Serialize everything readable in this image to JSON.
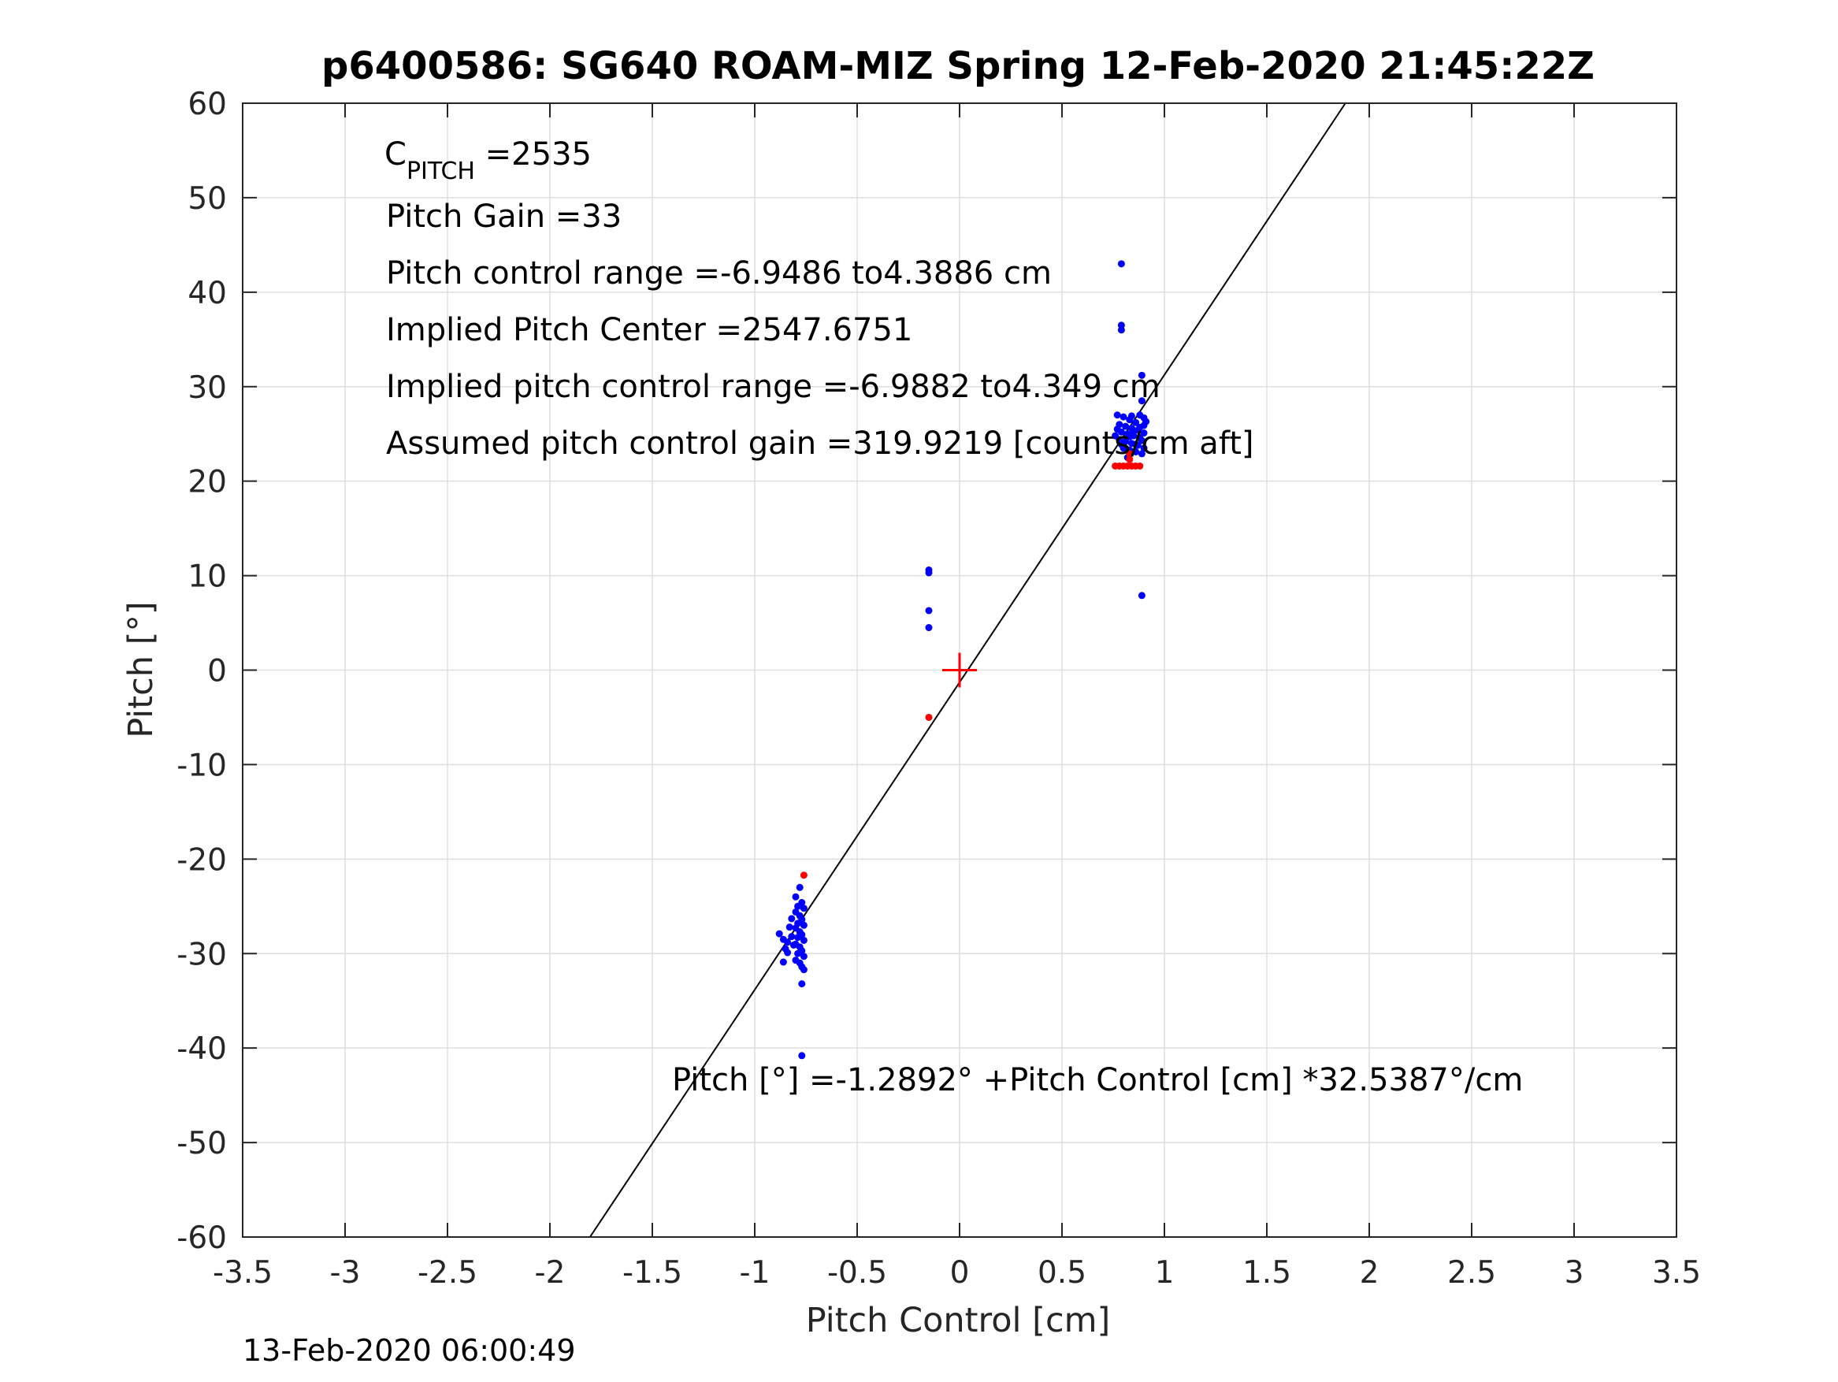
{
  "chart_data": {
    "type": "scatter",
    "title": "p6400586: SG640 ROAM-MIZ Spring 12-Feb-2020 21:45:22Z",
    "xlabel": "Pitch Control [cm]",
    "ylabel": "Pitch [°]",
    "xlim": [
      -3.5,
      3.5
    ],
    "ylim": [
      -60,
      60
    ],
    "xticks": [
      -3.5,
      -3,
      -2.5,
      -2,
      -1.5,
      -1,
      -0.5,
      0,
      0.5,
      1,
      1.5,
      2,
      2.5,
      3,
      3.5
    ],
    "yticks": [
      -60,
      -50,
      -40,
      -30,
      -20,
      -10,
      0,
      10,
      20,
      30,
      40,
      50,
      60
    ],
    "xtick_labels": [
      "-3.5",
      "-3",
      "-2.5",
      "-2",
      "-1.5",
      "-1",
      "-0.5",
      "0",
      "0.5",
      "1",
      "1.5",
      "2",
      "2.5",
      "3",
      "3.5"
    ],
    "ytick_labels": [
      "-60",
      "-50",
      "-40",
      "-30",
      "-20",
      "-10",
      "0",
      "10",
      "20",
      "30",
      "40",
      "50",
      "60"
    ],
    "grid": true,
    "fit_line": {
      "intercept": -1.2892,
      "slope": 32.5387
    },
    "center_marker": {
      "x": 0,
      "y": 0,
      "color": "#ff0000"
    },
    "series": [
      {
        "color": "#0000ff",
        "points": [
          [
            0.79,
            43.0
          ],
          [
            0.79,
            36.5
          ],
          [
            0.79,
            36.0
          ],
          [
            0.89,
            31.2
          ],
          [
            0.89,
            28.5
          ],
          [
            0.77,
            27.0
          ],
          [
            0.8,
            26.8
          ],
          [
            0.83,
            26.5
          ],
          [
            0.86,
            26.2
          ],
          [
            0.88,
            27.0
          ],
          [
            0.9,
            26.7
          ],
          [
            0.78,
            26.0
          ],
          [
            0.81,
            25.8
          ],
          [
            0.84,
            25.6
          ],
          [
            0.87,
            25.4
          ],
          [
            0.9,
            25.9
          ],
          [
            0.79,
            25.2
          ],
          [
            0.82,
            25.0
          ],
          [
            0.85,
            24.8
          ],
          [
            0.88,
            24.6
          ],
          [
            0.9,
            25.1
          ],
          [
            0.78,
            24.4
          ],
          [
            0.81,
            24.2
          ],
          [
            0.84,
            24.0
          ],
          [
            0.87,
            23.8
          ],
          [
            0.89,
            24.3
          ],
          [
            0.8,
            23.5
          ],
          [
            0.83,
            23.3
          ],
          [
            0.86,
            23.1
          ],
          [
            0.89,
            22.9
          ],
          [
            0.82,
            22.5
          ],
          [
            0.84,
            26.9
          ],
          [
            0.85,
            25.3
          ],
          [
            0.83,
            24.7
          ],
          [
            0.86,
            23.9
          ],
          [
            0.88,
            25.7
          ],
          [
            0.77,
            25.5
          ],
          [
            0.79,
            23.9
          ],
          [
            0.9,
            23.5
          ],
          [
            0.91,
            26.3
          ],
          [
            0.76,
            24.8
          ],
          [
            0.89,
            7.9
          ],
          [
            -0.15,
            10.6
          ],
          [
            -0.15,
            10.3
          ],
          [
            -0.15,
            6.3
          ],
          [
            -0.15,
            4.5
          ],
          [
            -0.78,
            -23.0
          ],
          [
            -0.8,
            -24.0
          ],
          [
            -0.77,
            -24.6
          ],
          [
            -0.79,
            -25.0
          ],
          [
            -0.76,
            -25.2
          ],
          [
            -0.8,
            -25.6
          ],
          [
            -0.78,
            -26.0
          ],
          [
            -0.77,
            -26.4
          ],
          [
            -0.79,
            -26.8
          ],
          [
            -0.76,
            -27.0
          ],
          [
            -0.8,
            -27.3
          ],
          [
            -0.78,
            -27.7
          ],
          [
            -0.77,
            -28.0
          ],
          [
            -0.79,
            -28.3
          ],
          [
            -0.76,
            -28.6
          ],
          [
            -0.8,
            -29.0
          ],
          [
            -0.78,
            -29.3
          ],
          [
            -0.77,
            -29.7
          ],
          [
            -0.79,
            -30.0
          ],
          [
            -0.76,
            -30.3
          ],
          [
            -0.8,
            -30.7
          ],
          [
            -0.78,
            -31.0
          ],
          [
            -0.77,
            -31.4
          ],
          [
            -0.76,
            -31.7
          ],
          [
            -0.88,
            -27.9
          ],
          [
            -0.86,
            -28.5
          ],
          [
            -0.85,
            -29.5
          ],
          [
            -0.84,
            -29.9
          ],
          [
            -0.86,
            -30.9
          ],
          [
            -0.82,
            -28.2
          ],
          [
            -0.83,
            -27.2
          ],
          [
            -0.82,
            -26.3
          ],
          [
            -0.81,
            -29.1
          ],
          [
            -0.84,
            -28.8
          ],
          [
            -0.77,
            -33.2
          ],
          [
            -0.77,
            -40.8
          ]
        ]
      },
      {
        "color": "#ff0000",
        "points": [
          [
            0.76,
            21.6
          ],
          [
            0.78,
            21.6
          ],
          [
            0.8,
            21.6
          ],
          [
            0.82,
            21.6
          ],
          [
            0.84,
            21.6
          ],
          [
            0.86,
            21.6
          ],
          [
            0.88,
            21.6
          ],
          [
            0.83,
            22.3
          ],
          [
            0.83,
            22.9
          ],
          [
            -0.15,
            -5.0
          ],
          [
            -0.76,
            -21.7
          ]
        ]
      }
    ],
    "annotations": {
      "cpitch_base": "C",
      "cpitch_sub": "PITCH",
      "cpitch_value": " =2535",
      "pitch_gain": "Pitch Gain =33",
      "control_range": "Pitch control range =-6.9486 to4.3886 cm",
      "implied_center": "Implied Pitch Center =2547.6751",
      "implied_range": "Implied pitch control range =-6.9882 to4.349 cm",
      "assumed_gain": "Assumed pitch control gain =319.9219 [counts/cm aft]",
      "fit_equation": "Pitch [°] =-1.2892° +Pitch Control [cm] *32.5387°/cm"
    }
  },
  "footer": {
    "timestamp": "13-Feb-2020 06:00:49"
  }
}
